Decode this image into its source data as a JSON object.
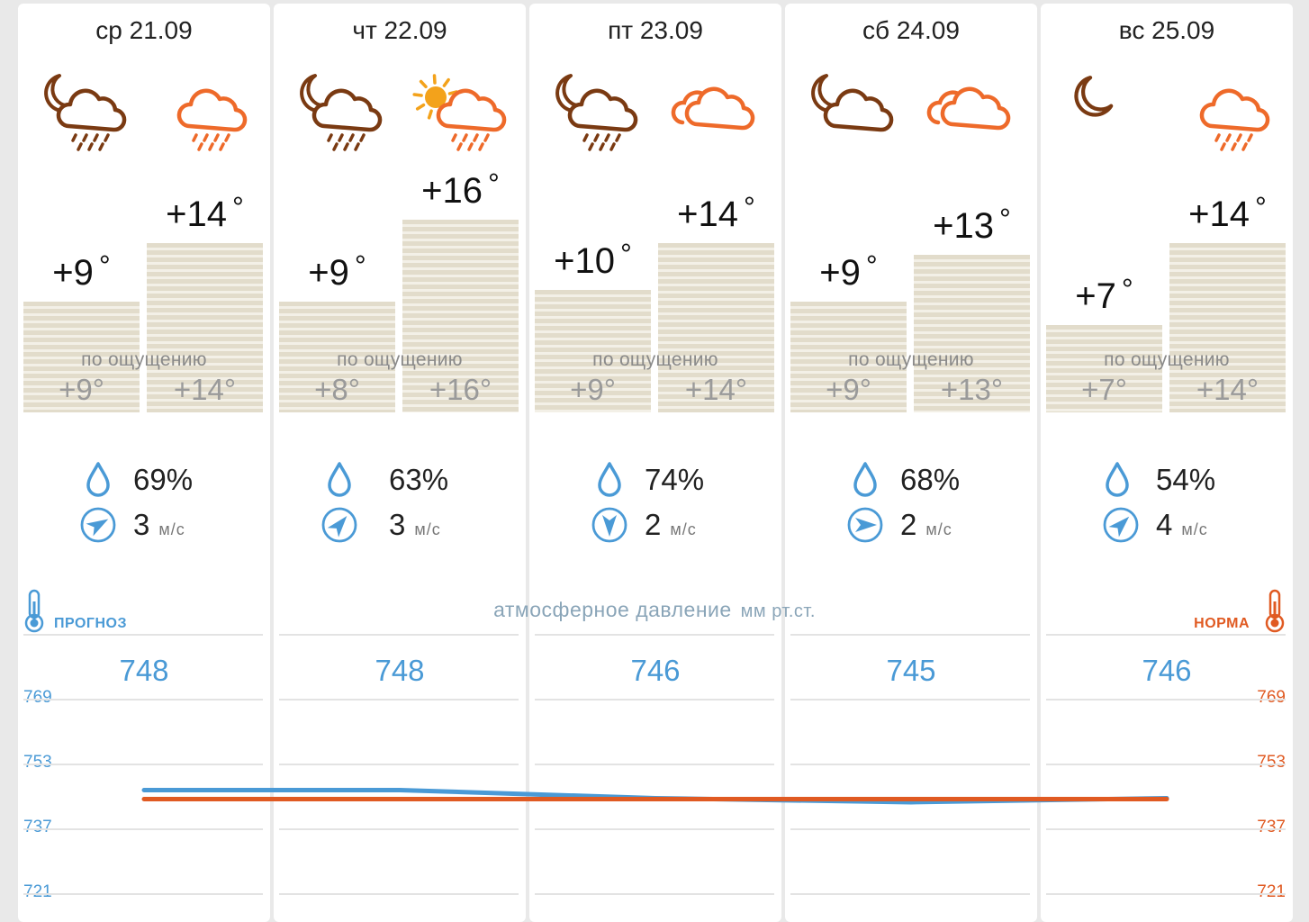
{
  "days": [
    {
      "date": "ср 21.09",
      "night_icon": "moon-cloud-rain-icon",
      "day_icon": "cloud-rain-icon",
      "night_temp": "+9",
      "day_temp": "+14",
      "feels_label": "по ощущению",
      "feels_night": "+9°",
      "feels_day": "+14°",
      "humidity": "69%",
      "wind_speed": "3",
      "wind_unit": "м/с",
      "wind_icon": "wind-direction-icon",
      "pressure": "748"
    },
    {
      "date": "чт 22.09",
      "night_icon": "moon-cloud-rain-icon",
      "day_icon": "sun-cloud-rain-icon",
      "night_temp": "+9",
      "day_temp": "+16",
      "feels_label": "по ощущению",
      "feels_night": "+8°",
      "feels_day": "+16°",
      "humidity": "63%",
      "wind_speed": "3",
      "wind_unit": "м/с",
      "wind_icon": "wind-direction-icon",
      "pressure": "748"
    },
    {
      "date": "пт 23.09",
      "night_icon": "moon-cloud-rain-icon",
      "day_icon": "clouds-icon",
      "night_temp": "+10",
      "day_temp": "+14",
      "feels_label": "по ощущению",
      "feels_night": "+9°",
      "feels_day": "+14°",
      "humidity": "74%",
      "wind_speed": "2",
      "wind_unit": "м/с",
      "wind_icon": "wind-direction-icon",
      "pressure": "746"
    },
    {
      "date": "сб 24.09",
      "night_icon": "moon-cloud-icon",
      "day_icon": "clouds-icon",
      "night_temp": "+9",
      "day_temp": "+13",
      "feels_label": "по ощущению",
      "feels_night": "+9°",
      "feels_day": "+13°",
      "humidity": "68%",
      "wind_speed": "2",
      "wind_unit": "м/с",
      "wind_icon": "wind-direction-icon",
      "pressure": "745"
    },
    {
      "date": "вс 25.09",
      "night_icon": "moon-icon",
      "day_icon": "cloud-rain-icon",
      "night_temp": "+7",
      "day_temp": "+14",
      "feels_label": "по ощущению",
      "feels_night": "+7°",
      "feels_day": "+14°",
      "humidity": "54%",
      "wind_speed": "4",
      "wind_unit": "м/с",
      "wind_icon": "wind-direction-icon",
      "pressure": "746"
    }
  ],
  "pressure_section": {
    "title": "атмосферное давление",
    "unit": "мм рт.ст.",
    "forecast_label": "ПРОГНОЗ",
    "norm_label": "НОРМА",
    "forecast_icon": "thermometer-icon",
    "norm_icon": "thermometer-icon"
  },
  "colors": {
    "forecast": "#4a9ad6",
    "norm": "#e05a22",
    "night_icon": "#7a3a12",
    "day_icon": "#ee6a2a",
    "sun": "#f3a21b"
  },
  "chart_data": {
    "type": "line",
    "categories": [
      "ср 21.09",
      "чт 22.09",
      "пт 23.09",
      "сб 24.09",
      "вс 25.09"
    ],
    "series": [
      {
        "name": "ПРОГНОЗ",
        "values": [
          748,
          748,
          746,
          745,
          746
        ]
      },
      {
        "name": "НОРМА",
        "values": [
          746,
          746,
          746,
          746,
          746
        ]
      }
    ],
    "y_ticks": [
      769,
      753,
      737,
      721
    ],
    "ylim": [
      705,
      785
    ],
    "ylabel": "атмосферное давление мм рт.ст."
  }
}
